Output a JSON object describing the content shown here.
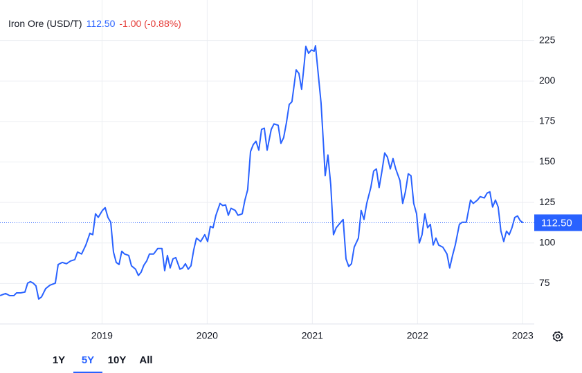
{
  "chart_data": {
    "type": "line",
    "title": "Iron Ore (USD/T)",
    "price": {
      "value": 112.5,
      "label": "112.50"
    },
    "change": "-1.00 (-0.88%)",
    "color": "#2962ff",
    "change_color": "#e53935",
    "grid": true,
    "xlim": [
      2018.03,
      2023.11
    ],
    "xticks": [
      2019,
      2020,
      2021,
      2022,
      2023
    ],
    "ylim": [
      50,
      250
    ],
    "yticks": [
      75,
      100,
      125,
      150,
      175,
      200,
      225
    ],
    "x": [
      2018.03,
      2018.083,
      2018.122,
      2018.162,
      2018.188,
      2018.227,
      2018.267,
      2018.293,
      2018.319,
      2018.346,
      2018.372,
      2018.398,
      2018.425,
      2018.464,
      2018.504,
      2018.556,
      2018.583,
      2018.622,
      2018.662,
      2018.701,
      2018.741,
      2018.767,
      2018.806,
      2018.846,
      2018.885,
      2018.912,
      2018.938,
      2018.964,
      2019.004,
      2019.03,
      2019.056,
      2019.083,
      2019.109,
      2019.135,
      2019.162,
      2019.188,
      2019.214,
      2019.254,
      2019.28,
      2019.319,
      2019.346,
      2019.372,
      2019.398,
      2019.425,
      2019.451,
      2019.491,
      2019.53,
      2019.57,
      2019.596,
      2019.622,
      2019.648,
      2019.675,
      2019.701,
      2019.741,
      2019.767,
      2019.793,
      2019.82,
      2019.846,
      2019.872,
      2019.898,
      2019.938,
      2019.977,
      2020.004,
      2020.03,
      2020.056,
      2020.083,
      2020.122,
      2020.148,
      2020.175,
      2020.201,
      2020.227,
      2020.267,
      2020.293,
      2020.333,
      2020.359,
      2020.385,
      2020.412,
      2020.438,
      2020.464,
      2020.491,
      2020.517,
      2020.543,
      2020.57,
      2020.609,
      2020.635,
      2020.675,
      2020.701,
      2020.727,
      2020.754,
      2020.78,
      2020.806,
      2020.846,
      2020.872,
      2020.898,
      2020.925,
      2020.938,
      2020.964,
      2020.991,
      2021.017,
      2021.03,
      2021.056,
      2021.083,
      2021.109,
      2021.122,
      2021.148,
      2021.175,
      2021.201,
      2021.227,
      2021.254,
      2021.293,
      2021.32,
      2021.346,
      2021.372,
      2021.398,
      2021.438,
      2021.464,
      2021.491,
      2021.517,
      2021.556,
      2021.583,
      2021.609,
      2021.635,
      2021.662,
      2021.688,
      2021.714,
      2021.741,
      2021.767,
      2021.793,
      2021.833,
      2021.859,
      2021.885,
      2021.912,
      2021.938,
      2021.964,
      2021.991,
      2022.017,
      2022.043,
      2022.07,
      2022.096,
      2022.122,
      2022.149,
      2022.175,
      2022.201,
      2022.241,
      2022.28,
      2022.306,
      2022.333,
      2022.359,
      2022.398,
      2022.425,
      2022.464,
      2022.504,
      2022.53,
      2022.57,
      2022.596,
      2022.635,
      2022.662,
      2022.688,
      2022.714,
      2022.741,
      2022.767,
      2022.793,
      2022.82,
      2022.846,
      2022.872,
      2022.898,
      2022.925,
      2022.951,
      2022.977,
      2023.004
    ],
    "values": [
      67.5,
      68.8,
      67.5,
      67.5,
      69.2,
      69.2,
      69.7,
      75.2,
      76.1,
      75.2,
      73.5,
      65.4,
      66.7,
      71.8,
      73.9,
      75.2,
      86.7,
      88.0,
      87.2,
      88.9,
      89.7,
      94.4,
      93.2,
      98.7,
      106.0,
      105.1,
      118.0,
      115.8,
      120.1,
      121.8,
      115.8,
      112.8,
      94.4,
      88.0,
      86.7,
      94.9,
      93.2,
      92.3,
      85.9,
      83.8,
      79.9,
      82.0,
      86.3,
      88.9,
      93.2,
      93.2,
      96.6,
      96.6,
      82.9,
      92.3,
      84.6,
      90.2,
      91.0,
      83.8,
      84.6,
      87.2,
      83.8,
      85.9,
      95.7,
      103.0,
      100.9,
      105.1,
      100.9,
      110.3,
      109.4,
      117.1,
      124.4,
      123.1,
      123.5,
      117.1,
      121.4,
      120.1,
      117.1,
      118.0,
      126.5,
      132.9,
      156.4,
      160.7,
      162.8,
      157.3,
      170.1,
      170.9,
      157.3,
      170.1,
      173.5,
      172.7,
      161.5,
      165.0,
      174.4,
      185.5,
      187.2,
      206.9,
      204.7,
      194.9,
      212.0,
      221.4,
      217.1,
      219.2,
      218.4,
      221.8,
      204.3,
      186.3,
      157.3,
      141.5,
      154.3,
      135.9,
      105.1,
      109.4,
      111.5,
      114.5,
      90.2,
      85.5,
      87.2,
      97.4,
      103.0,
      120.1,
      114.5,
      124.4,
      134.2,
      144.4,
      145.7,
      134.2,
      144.4,
      155.6,
      153.0,
      145.7,
      152.1,
      145.7,
      138.5,
      124.4,
      131.6,
      142.7,
      141.5,
      124.4,
      118.0,
      100.0,
      105.1,
      118.0,
      109.4,
      111.5,
      98.7,
      103.0,
      98.7,
      97.4,
      93.2,
      84.6,
      92.3,
      98.7,
      111.5,
      112.8,
      112.8,
      126.5,
      124.4,
      126.5,
      128.6,
      127.8,
      130.8,
      131.6,
      122.2,
      126.5,
      122.2,
      107.3,
      100.9,
      107.3,
      105.1,
      109.4,
      115.8,
      116.7,
      113.7,
      112.5
    ]
  },
  "ranges": {
    "options": [
      "1Y",
      "5Y",
      "10Y",
      "All"
    ],
    "active": 1
  }
}
